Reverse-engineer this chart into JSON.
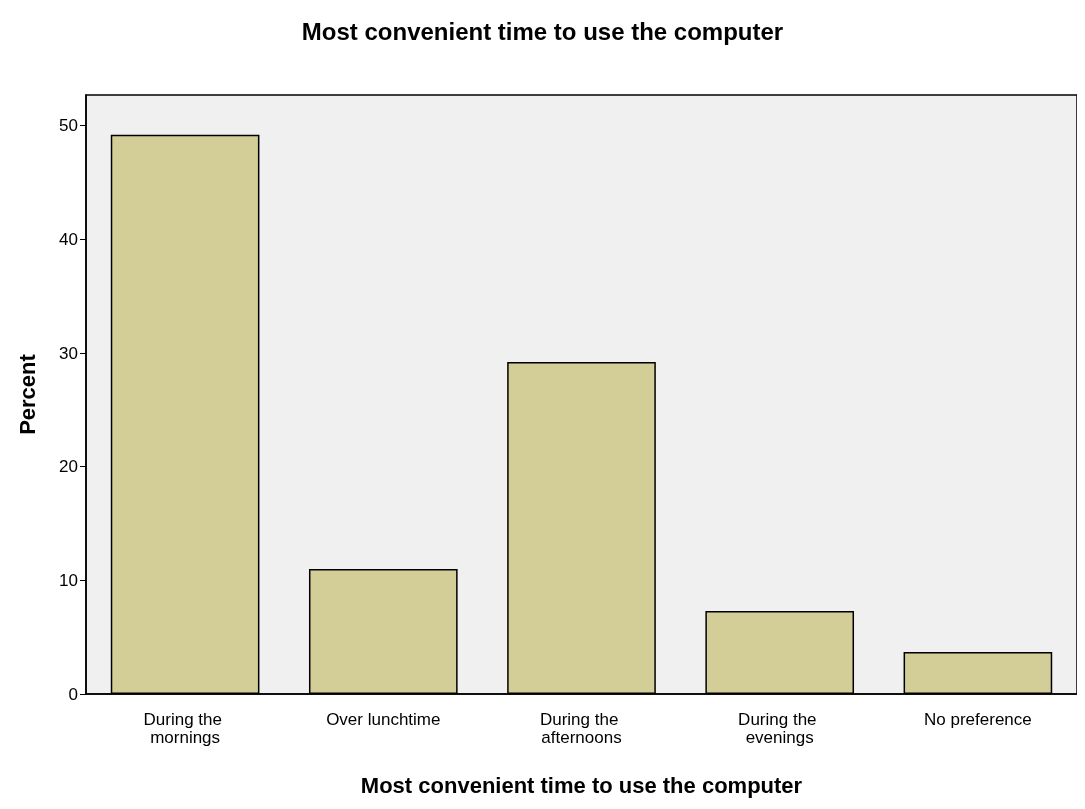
{
  "chart_data": {
    "type": "bar",
    "title": "Most convenient time to use the computer",
    "xlabel": "Most convenient time to use the computer",
    "ylabel": "Percent",
    "categories": [
      "During the mornings",
      "Over lunchtime",
      "During the afternoons",
      "During the evenings",
      "No preference"
    ],
    "values": [
      49.2,
      11.0,
      29.2,
      7.3,
      3.7
    ],
    "color": "#d3ce97",
    "ylim": [
      0,
      52.7
    ],
    "yticks": [
      0,
      10,
      20,
      30,
      40,
      50
    ],
    "grid": false
  }
}
